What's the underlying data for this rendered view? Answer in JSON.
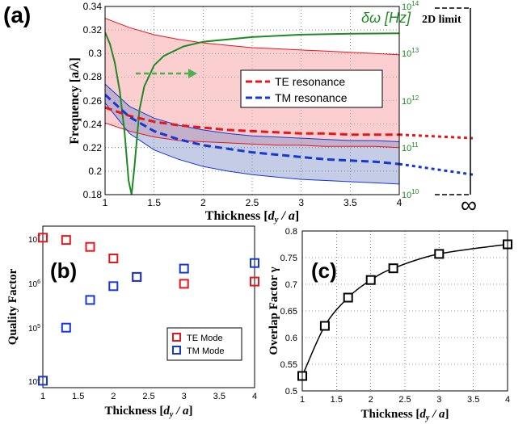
{
  "chart_data": [
    {
      "panel_label": "(a)",
      "type": "line",
      "xlabel": "Thickness [d_y / a]",
      "ylabel": "Frequency [a/λ]",
      "y2label": "δω [Hz]",
      "xlim": [
        1,
        4
      ],
      "ylim": [
        0.18,
        0.34
      ],
      "y2lim_log10": [
        10,
        14
      ],
      "x_ticks": [
        "1",
        "1.5",
        "2",
        "2.5",
        "3",
        "3.5",
        "4"
      ],
      "y_ticks": [
        "0.18",
        "0.2",
        "0.22",
        "0.24",
        "0.26",
        "0.28",
        "0.3",
        "0.32",
        "0.34"
      ],
      "y2_tick_exponents": [
        "10",
        "11",
        "12",
        "13",
        "14"
      ],
      "legend_placement": "center-right",
      "grid": true,
      "limit_label": "2D limit",
      "limit_symbol": "∞",
      "series": [
        {
          "name": "TE resonance",
          "color": "#e8151b",
          "x": [
            1,
            1.25,
            1.5,
            1.75,
            2,
            2.25,
            2.5,
            2.75,
            3,
            3.25,
            3.5,
            3.75,
            4
          ],
          "y": [
            0.254,
            0.247,
            0.242,
            0.239,
            0.237,
            0.235,
            0.234,
            0.233,
            0.232,
            0.232,
            0.231,
            0.231,
            0.231
          ],
          "extension_x": [
            4,
            4.75
          ],
          "extension_y": [
            0.231,
            0.228
          ],
          "band_upper": [
            0.33,
            0.322,
            0.316,
            0.312,
            0.309,
            0.307,
            0.305,
            0.304,
            0.303,
            0.302,
            0.301,
            0.3,
            0.299
          ],
          "band_lower": [
            0.241,
            0.234,
            0.229,
            0.226,
            0.225,
            0.224,
            0.223,
            0.222,
            0.222,
            0.221,
            0.221,
            0.221,
            0.22
          ]
        },
        {
          "name": "TM resonance",
          "color": "#1437d6",
          "x": [
            1,
            1.25,
            1.5,
            1.75,
            2,
            2.25,
            2.5,
            2.75,
            3,
            3.25,
            3.5,
            3.75,
            4
          ],
          "y": [
            0.265,
            0.246,
            0.234,
            0.227,
            0.222,
            0.219,
            0.216,
            0.214,
            0.212,
            0.21,
            0.209,
            0.208,
            0.206
          ],
          "extension_x": [
            4,
            4.75
          ],
          "extension_y": [
            0.206,
            0.197
          ],
          "band_upper": [
            0.274,
            0.255,
            0.245,
            0.239,
            0.235,
            0.232,
            0.23,
            0.229,
            0.228,
            0.227,
            0.226,
            0.226,
            0.225
          ],
          "band_lower": [
            0.258,
            0.232,
            0.218,
            0.21,
            0.204,
            0.2,
            0.197,
            0.195,
            0.193,
            0.192,
            0.191,
            0.19,
            0.189
          ]
        },
        {
          "name": "δω",
          "color": "#1f8a23",
          "axis": "right_log",
          "x": [
            1,
            1.05,
            1.1,
            1.15,
            1.2,
            1.24,
            1.27,
            1.3,
            1.35,
            1.4,
            1.5,
            1.6,
            1.8,
            2,
            2.5,
            3,
            3.5,
            4
          ],
          "log10_y": [
            13.45,
            13.2,
            12.8,
            12.2,
            11.3,
            10.3,
            10.0,
            10.6,
            11.8,
            12.3,
            12.75,
            12.95,
            13.15,
            13.25,
            13.35,
            13.4,
            13.42,
            13.43
          ]
        }
      ]
    },
    {
      "panel_label": "(b)",
      "type": "scatter",
      "xlabel": "Thickness [d_y / a]",
      "ylabel": "Quality Factor",
      "x_ticks": [
        "1",
        "1.5",
        "2",
        "2.5",
        "3",
        "3.5",
        "4"
      ],
      "xlim": [
        1,
        4
      ],
      "y_log_range": [
        3.8,
        7.3
      ],
      "y_tick_exponents": [
        "4",
        "5",
        "6",
        "7"
      ],
      "legend_placement": "bottom-right",
      "series": [
        {
          "name": "TE Mode",
          "color": "#e8151b",
          "x": [
            1,
            1.33,
            1.67,
            2,
            2.33,
            3,
            4
          ],
          "log10_y": [
            7.05,
            7.0,
            6.85,
            6.6,
            6.2,
            6.05,
            6.1
          ]
        },
        {
          "name": "TM Mode",
          "color": "#1437d6",
          "x": [
            1,
            1.33,
            1.67,
            2,
            2.33,
            3,
            4
          ],
          "log10_y": [
            3.95,
            5.1,
            5.7,
            6.0,
            6.2,
            6.38,
            6.5
          ]
        }
      ]
    },
    {
      "panel_label": "(c)",
      "type": "line",
      "xlabel": "Thickness [d_y / a]",
      "ylabel": "Overlap Factor γ",
      "xlim": [
        1,
        4
      ],
      "ylim": [
        0.5,
        0.8
      ],
      "x_ticks": [
        "1",
        "1.5",
        "2",
        "2.5",
        "3",
        "3.5",
        "4"
      ],
      "y_ticks": [
        "0.5",
        "0.55",
        "0.6",
        "0.65",
        "0.7",
        "0.75",
        "0.8"
      ],
      "grid": true,
      "series": [
        {
          "color": "#000000",
          "x": [
            1,
            1.33,
            1.67,
            2,
            2.33,
            3,
            4
          ],
          "y": [
            0.528,
            0.622,
            0.675,
            0.708,
            0.73,
            0.757,
            0.775
          ]
        }
      ]
    }
  ]
}
